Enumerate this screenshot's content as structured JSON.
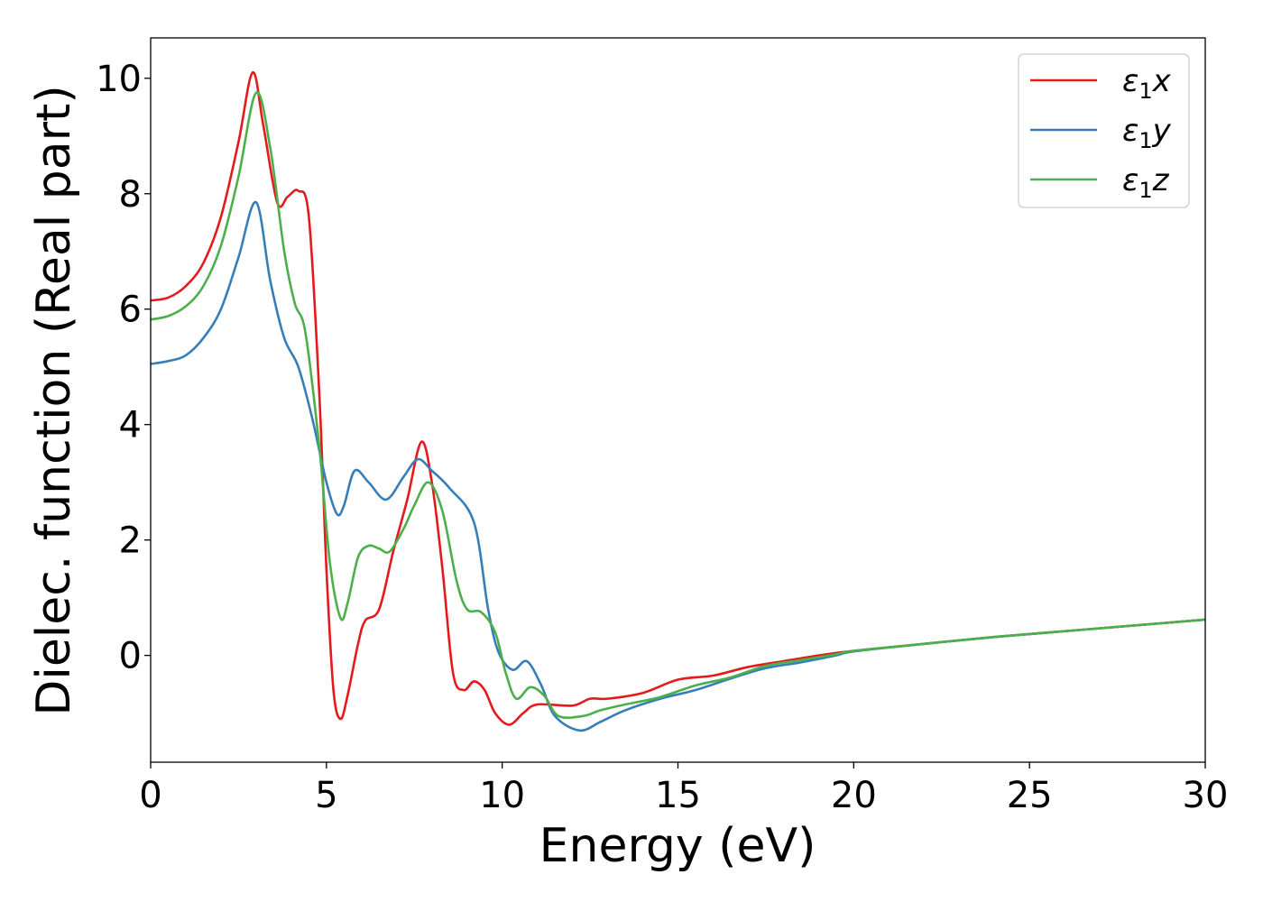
{
  "chart_data": {
    "type": "line",
    "xlabel": "Energy (eV)",
    "ylabel": "Dielec. function (Real part)",
    "xlim": [
      0,
      30
    ],
    "ylim": [
      -1.85,
      10.7
    ],
    "xticks": [
      0,
      5,
      10,
      15,
      20,
      25,
      30
    ],
    "yticks": [
      0,
      2,
      4,
      6,
      8,
      10
    ],
    "grid": false,
    "legend_position": "top-right",
    "legend_entries": [
      {
        "base": "ε",
        "sub": "1",
        "suffix": "x"
      },
      {
        "base": "ε",
        "sub": "1",
        "suffix": "y"
      },
      {
        "base": "ε",
        "sub": "1",
        "suffix": "z"
      }
    ],
    "series": [
      {
        "name": "ε1x",
        "color": "#e41a1c",
        "points": [
          [
            0,
            6.15
          ],
          [
            0.5,
            6.2
          ],
          [
            1,
            6.4
          ],
          [
            1.5,
            6.8
          ],
          [
            2,
            7.6
          ],
          [
            2.5,
            8.9
          ],
          [
            2.9,
            10.1
          ],
          [
            3.2,
            9.2
          ],
          [
            3.6,
            7.85
          ],
          [
            3.9,
            7.95
          ],
          [
            4.2,
            8.05
          ],
          [
            4.5,
            7.6
          ],
          [
            4.8,
            4.5
          ],
          [
            5.0,
            1.5
          ],
          [
            5.2,
            -0.6
          ],
          [
            5.4,
            -1.1
          ],
          [
            5.6,
            -0.7
          ],
          [
            5.9,
            0.2
          ],
          [
            6.1,
            0.6
          ],
          [
            6.5,
            0.8
          ],
          [
            6.9,
            1.8
          ],
          [
            7.3,
            2.7
          ],
          [
            7.7,
            3.7
          ],
          [
            8.0,
            3.0
          ],
          [
            8.3,
            1.5
          ],
          [
            8.6,
            -0.3
          ],
          [
            8.9,
            -0.6
          ],
          [
            9.2,
            -0.45
          ],
          [
            9.5,
            -0.6
          ],
          [
            9.8,
            -1.0
          ],
          [
            10.2,
            -1.2
          ],
          [
            10.6,
            -1.0
          ],
          [
            11.0,
            -0.85
          ],
          [
            12.0,
            -0.87
          ],
          [
            12.5,
            -0.75
          ],
          [
            13,
            -0.75
          ],
          [
            14,
            -0.65
          ],
          [
            15,
            -0.42
          ],
          [
            16,
            -0.35
          ],
          [
            17,
            -0.2
          ],
          [
            18,
            -0.1
          ],
          [
            19,
            0
          ],
          [
            20,
            0.08
          ],
          [
            22,
            0.2
          ],
          [
            24,
            0.32
          ],
          [
            26,
            0.42
          ],
          [
            28,
            0.52
          ],
          [
            30,
            0.62
          ]
        ]
      },
      {
        "name": "ε1y",
        "color": "#377eb8",
        "points": [
          [
            0,
            5.05
          ],
          [
            0.5,
            5.1
          ],
          [
            1,
            5.2
          ],
          [
            1.5,
            5.5
          ],
          [
            2,
            6.0
          ],
          [
            2.5,
            6.9
          ],
          [
            3.0,
            7.85
          ],
          [
            3.4,
            6.5
          ],
          [
            3.8,
            5.5
          ],
          [
            4.2,
            5.0
          ],
          [
            4.6,
            4.1
          ],
          [
            5.0,
            3.0
          ],
          [
            5.3,
            2.45
          ],
          [
            5.5,
            2.6
          ],
          [
            5.8,
            3.2
          ],
          [
            6.2,
            3.0
          ],
          [
            6.7,
            2.7
          ],
          [
            7.2,
            3.1
          ],
          [
            7.6,
            3.4
          ],
          [
            8.0,
            3.2
          ],
          [
            8.5,
            2.9
          ],
          [
            9.2,
            2.3
          ],
          [
            9.6,
            0.8
          ],
          [
            9.9,
            0.05
          ],
          [
            10.3,
            -0.25
          ],
          [
            10.7,
            -0.1
          ],
          [
            11.1,
            -0.5
          ],
          [
            11.5,
            -1.05
          ],
          [
            12.2,
            -1.3
          ],
          [
            12.8,
            -1.15
          ],
          [
            13.5,
            -0.95
          ],
          [
            14.5,
            -0.75
          ],
          [
            15.5,
            -0.6
          ],
          [
            16.5,
            -0.4
          ],
          [
            17.5,
            -0.22
          ],
          [
            18.5,
            -0.12
          ],
          [
            19.5,
            0
          ],
          [
            20,
            0.07
          ],
          [
            22,
            0.2
          ],
          [
            24,
            0.32
          ],
          [
            26,
            0.42
          ],
          [
            28,
            0.52
          ],
          [
            30,
            0.62
          ]
        ]
      },
      {
        "name": "ε1z",
        "color": "#4daf4a",
        "points": [
          [
            0,
            5.82
          ],
          [
            0.5,
            5.88
          ],
          [
            1,
            6.05
          ],
          [
            1.5,
            6.4
          ],
          [
            2,
            7.1
          ],
          [
            2.5,
            8.3
          ],
          [
            3.0,
            9.75
          ],
          [
            3.4,
            8.8
          ],
          [
            3.8,
            7.0
          ],
          [
            4.1,
            6.1
          ],
          [
            4.4,
            5.6
          ],
          [
            4.8,
            3.6
          ],
          [
            5.1,
            1.6
          ],
          [
            5.4,
            0.65
          ],
          [
            5.6,
            0.9
          ],
          [
            5.9,
            1.7
          ],
          [
            6.2,
            1.9
          ],
          [
            6.5,
            1.85
          ],
          [
            6.8,
            1.8
          ],
          [
            7.2,
            2.2
          ],
          [
            7.5,
            2.6
          ],
          [
            7.9,
            3.0
          ],
          [
            8.3,
            2.5
          ],
          [
            8.7,
            1.3
          ],
          [
            9.0,
            0.8
          ],
          [
            9.4,
            0.75
          ],
          [
            9.8,
            0.4
          ],
          [
            10.1,
            -0.3
          ],
          [
            10.4,
            -0.75
          ],
          [
            10.8,
            -0.55
          ],
          [
            11.2,
            -0.7
          ],
          [
            11.6,
            -1.05
          ],
          [
            12.3,
            -1.05
          ],
          [
            12.8,
            -0.95
          ],
          [
            13.5,
            -0.85
          ],
          [
            14.5,
            -0.72
          ],
          [
            15.5,
            -0.52
          ],
          [
            16.5,
            -0.38
          ],
          [
            17.5,
            -0.18
          ],
          [
            18.5,
            -0.08
          ],
          [
            19.5,
            0.02
          ],
          [
            20,
            0.08
          ],
          [
            22,
            0.2
          ],
          [
            24,
            0.32
          ],
          [
            26,
            0.42
          ],
          [
            28,
            0.52
          ],
          [
            30,
            0.62
          ]
        ]
      }
    ]
  }
}
